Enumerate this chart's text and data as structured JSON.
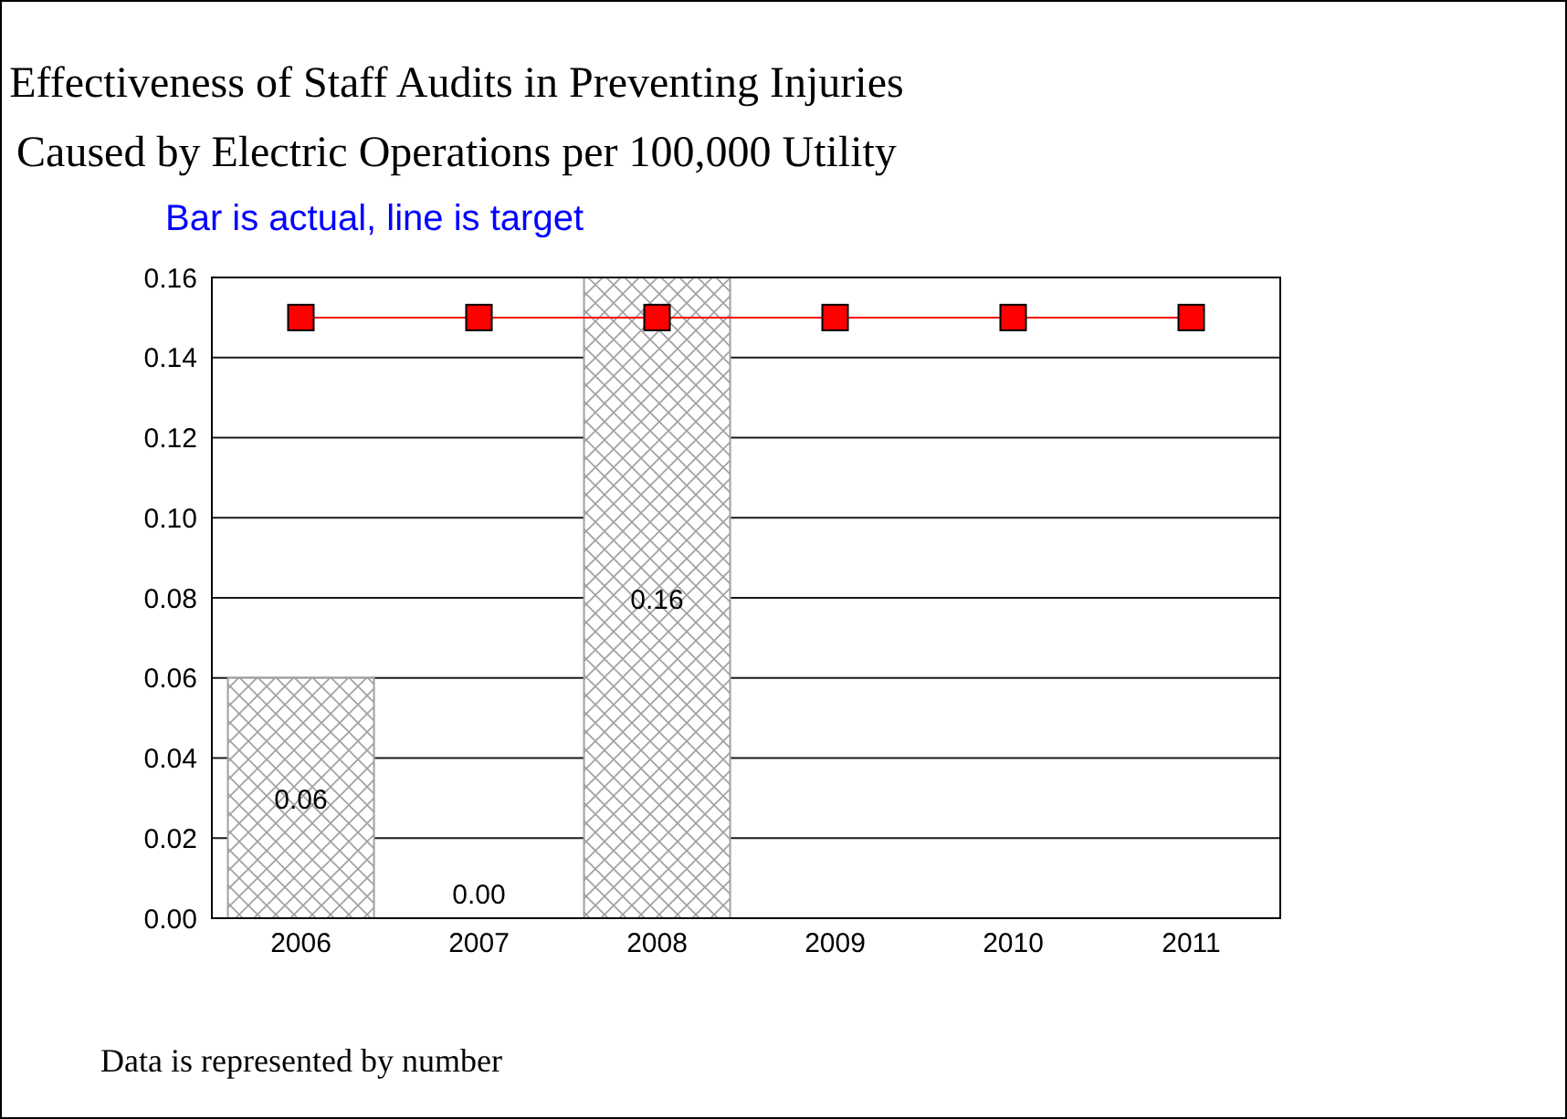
{
  "chart_data": {
    "type": "bar",
    "title": "Effectiveness of Staff Audits in Preventing Injuries\nCaused by Electric Operations per 100,000 Utility",
    "subtitle": "Bar is actual, line is target",
    "categories": [
      "2006",
      "2007",
      "2008",
      "2009",
      "2010",
      "2011"
    ],
    "series": [
      {
        "color": "#a0a0a0",
        "values": [
          0.06,
          0,
          0.16,
          null,
          null,
          null
        ],
        "value_labels": [
          "0.06",
          "0.00",
          "0.16",
          null,
          null,
          null
        ]
      },
      {
        "type": "line",
        "color": "#ff0000",
        "values": [
          0.15,
          0.15,
          0.15,
          0.15,
          0.15,
          0.15
        ],
        "marker": "square"
      }
    ],
    "ylim": [
      0,
      0.16
    ],
    "yticks": [
      {
        "value": 0,
        "label": "0.00"
      },
      {
        "value": 0.02,
        "label": "0.02"
      },
      {
        "value": 0.04,
        "label": "0.04"
      },
      {
        "value": 0.06,
        "label": "0.06"
      },
      {
        "value": 0.08,
        "label": "0.08"
      },
      {
        "value": 0.1,
        "label": "0.10"
      },
      {
        "value": 0.12,
        "label": "0.12"
      },
      {
        "value": 0.14,
        "label": "0.14"
      },
      {
        "value": 0.16,
        "label": "0.16"
      }
    ],
    "grid": "y",
    "legend": false,
    "annotations": [
      "Data is represented by number"
    ]
  }
}
